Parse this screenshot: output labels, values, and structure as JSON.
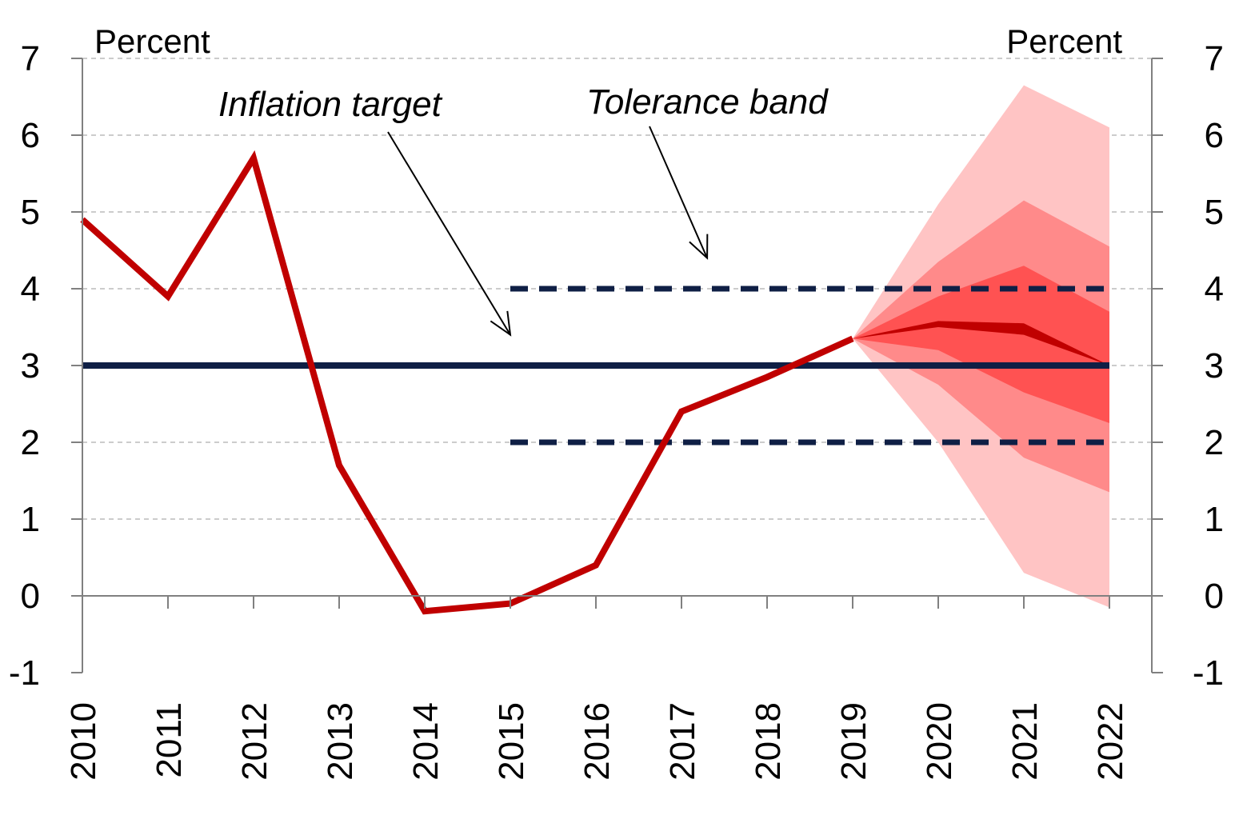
{
  "chart_data": {
    "type": "line",
    "x": [
      2010,
      2011,
      2012,
      2013,
      2014,
      2015,
      2016,
      2017,
      2018,
      2019,
      2020,
      2021,
      2022
    ],
    "ylim": [
      -1,
      7
    ],
    "yticks": [
      -1,
      0,
      1,
      2,
      3,
      4,
      5,
      6,
      7
    ],
    "ylabel_left": "Percent",
    "ylabel_right": "Percent",
    "grid": true,
    "series": [
      {
        "name": "",
        "color": "#c00000",
        "x": [
          2010,
          2011,
          2012,
          2013,
          2014,
          2015,
          2016,
          2017,
          2018,
          2019
        ],
        "values": [
          4.9,
          3.9,
          5.7,
          1.7,
          -0.2,
          -0.1,
          0.4,
          2.4,
          2.85,
          3.35
        ]
      },
      {
        "name": "Inflation target",
        "color": "#0f1f45",
        "x": [
          2010,
          2022
        ],
        "values": [
          3,
          3
        ]
      },
      {
        "name": "Tolerance band",
        "color": "#0f1f45",
        "style": "dashed",
        "x": [
          2015,
          2022
        ],
        "values_upper": [
          4,
          4
        ],
        "values_lower": [
          2,
          2
        ]
      }
    ],
    "fan": {
      "x": [
        2019,
        2020,
        2021,
        2022
      ],
      "bands": [
        {
          "color": "#ffc4c4",
          "upper": [
            3.35,
            5.1,
            6.65,
            6.1
          ],
          "lower": [
            3.35,
            2.0,
            0.3,
            -0.15
          ]
        },
        {
          "color": "#ff8a8a",
          "upper": [
            3.35,
            4.35,
            5.15,
            4.55
          ],
          "lower": [
            3.35,
            2.75,
            1.8,
            1.35
          ]
        },
        {
          "color": "#ff5252",
          "upper": [
            3.35,
            3.9,
            4.3,
            3.7
          ],
          "lower": [
            3.35,
            3.2,
            2.65,
            2.25
          ]
        },
        {
          "color": "#c00000",
          "upper": [
            3.35,
            3.58,
            3.55,
            3.0
          ],
          "lower": [
            3.35,
            3.5,
            3.4,
            3.0
          ]
        }
      ]
    },
    "annotations": [
      {
        "text": "Inflation target",
        "target": [
          2015,
          3.4
        ]
      },
      {
        "text": "Tolerance band",
        "target": [
          2017.3,
          4.4
        ]
      }
    ]
  }
}
